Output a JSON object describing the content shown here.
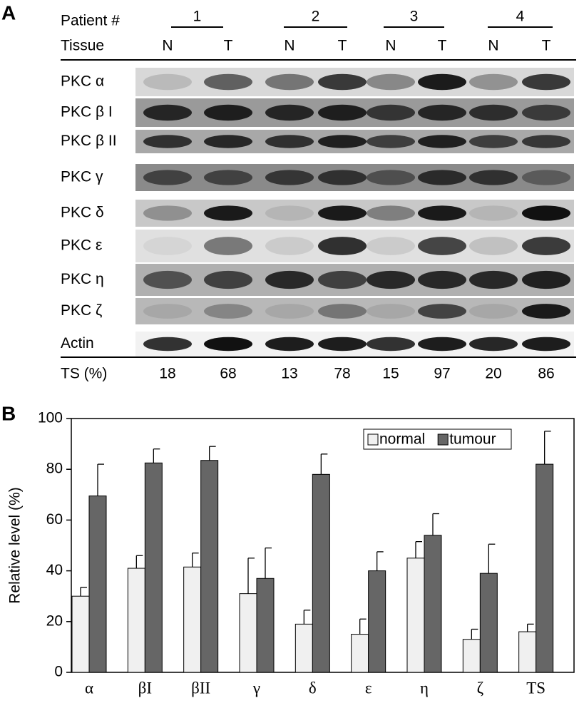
{
  "panel_a": {
    "label": "A",
    "patient_header": "Patient #",
    "patients": [
      "1",
      "2",
      "3",
      "4"
    ],
    "tissue_header": "Tissue",
    "tissues": [
      "N",
      "T",
      "N",
      "T",
      "N",
      "T",
      "N",
      "T"
    ],
    "rows": [
      "PKC α",
      "PKC β I",
      "PKC β II",
      "PKC γ",
      "PKC δ",
      "PKC ε",
      "PKC η",
      "PKC ζ",
      "Actin"
    ],
    "ts_header": "TS (%)",
    "ts_values": [
      18,
      68,
      13,
      78,
      15,
      97,
      20,
      86
    ]
  },
  "chart_data": {
    "type": "bar",
    "label": "B",
    "ylabel": "Relative level (%)",
    "categories": [
      "α",
      "βI",
      "βII",
      "γ",
      "δ",
      "ε",
      "η",
      "ζ",
      "TS"
    ],
    "series": [
      {
        "name": "normal",
        "color": "#f0f0f0",
        "values": [
          30,
          41,
          41.5,
          31,
          19,
          15,
          45,
          13,
          16
        ],
        "errors": [
          3.5,
          5,
          5.5,
          14,
          5.5,
          6,
          6.5,
          4,
          3
        ]
      },
      {
        "name": "tumour",
        "color": "#666666",
        "values": [
          69.5,
          82.5,
          83.5,
          37,
          78,
          40,
          54,
          39,
          82
        ],
        "errors": [
          12.5,
          5.5,
          5.5,
          12,
          8,
          7.5,
          8.5,
          11.5,
          13
        ]
      }
    ],
    "ylim": [
      0,
      100
    ],
    "yticks": [
      0,
      20,
      40,
      60,
      80,
      100
    ],
    "legend": "upper right"
  }
}
